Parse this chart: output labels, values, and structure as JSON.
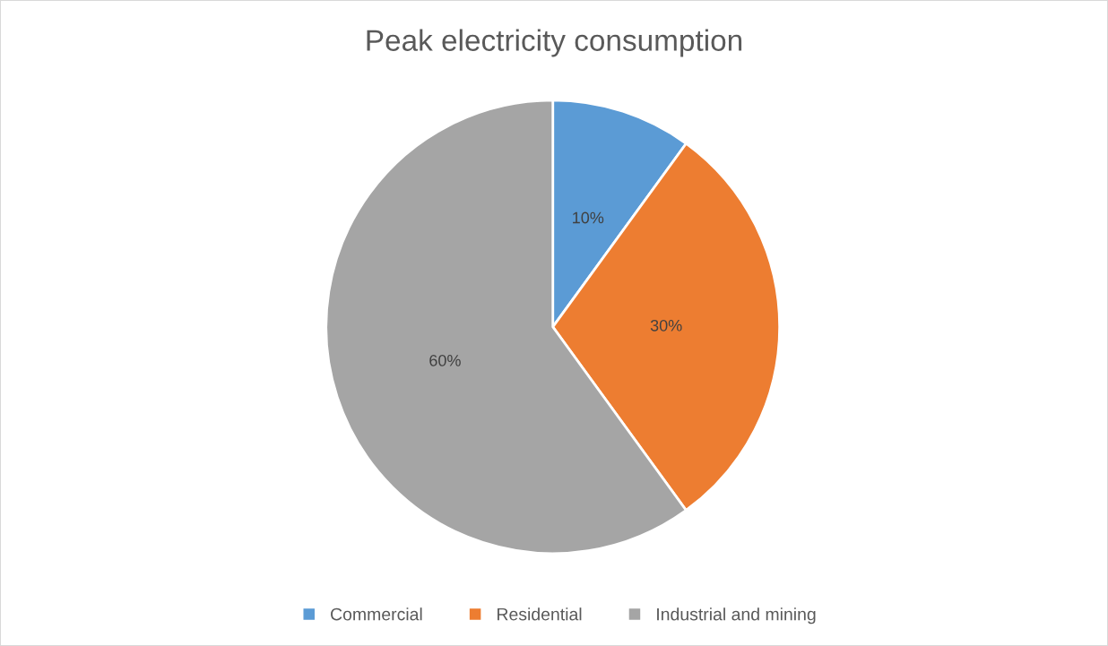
{
  "chart_data": {
    "type": "pie",
    "title": "Peak electricity consumption",
    "categories": [
      "Commercial",
      "Residential",
      "Industrial and mining"
    ],
    "values": [
      10,
      30,
      60
    ],
    "colors": [
      "#5b9bd5",
      "#ed7d31",
      "#a5a5a5"
    ],
    "value_labels": [
      "10%",
      "30%",
      "60%"
    ],
    "legend": "bottom"
  }
}
